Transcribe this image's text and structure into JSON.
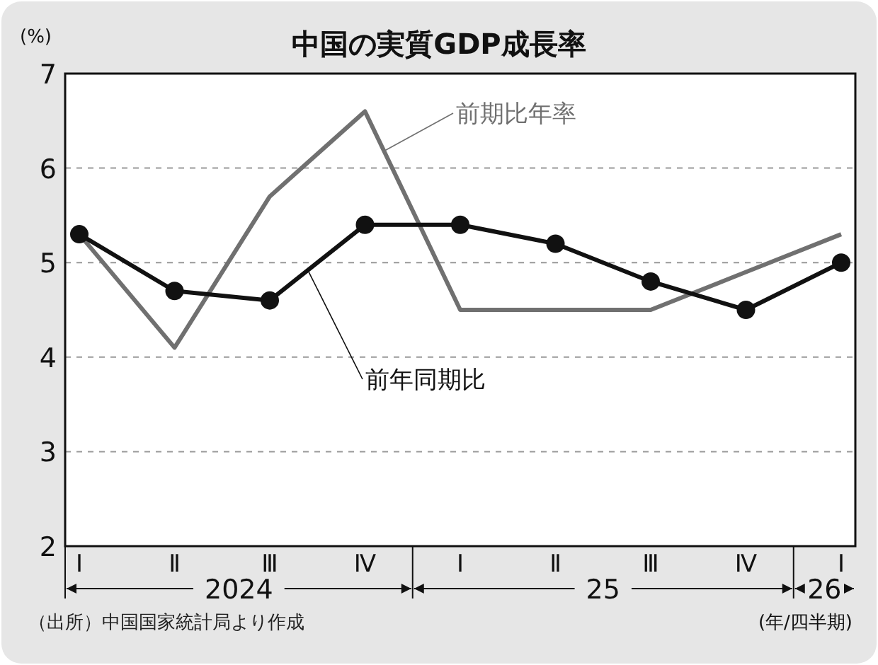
{
  "chart_data": {
    "type": "line",
    "title": "中国の実質GDP成長率",
    "ylabel": "(%)",
    "xlabel": "(年/四半期)",
    "categories": [
      "Ⅰ",
      "Ⅱ",
      "Ⅲ",
      "Ⅳ",
      "Ⅰ",
      "Ⅱ",
      "Ⅲ",
      "Ⅳ",
      "Ⅰ"
    ],
    "series": [
      {
        "name": "前期比年率",
        "color": "#707070",
        "marker": "none",
        "values": [
          5.3,
          4.1,
          5.7,
          6.6,
          4.5,
          4.5,
          4.5,
          4.9,
          5.3
        ]
      },
      {
        "name": "前年同期比",
        "color": "#111111",
        "marker": "circle",
        "values": [
          5.3,
          4.7,
          4.6,
          5.4,
          5.4,
          5.2,
          4.8,
          4.5,
          5.0
        ]
      }
    ],
    "ylim": [
      2,
      7
    ],
    "yticks": [
      2,
      3,
      4,
      5,
      6,
      7
    ],
    "grid": "y",
    "legend": false,
    "annotations": [
      "2024",
      "25",
      "26",
      "（出所）中国国家統計局より作成"
    ]
  }
}
